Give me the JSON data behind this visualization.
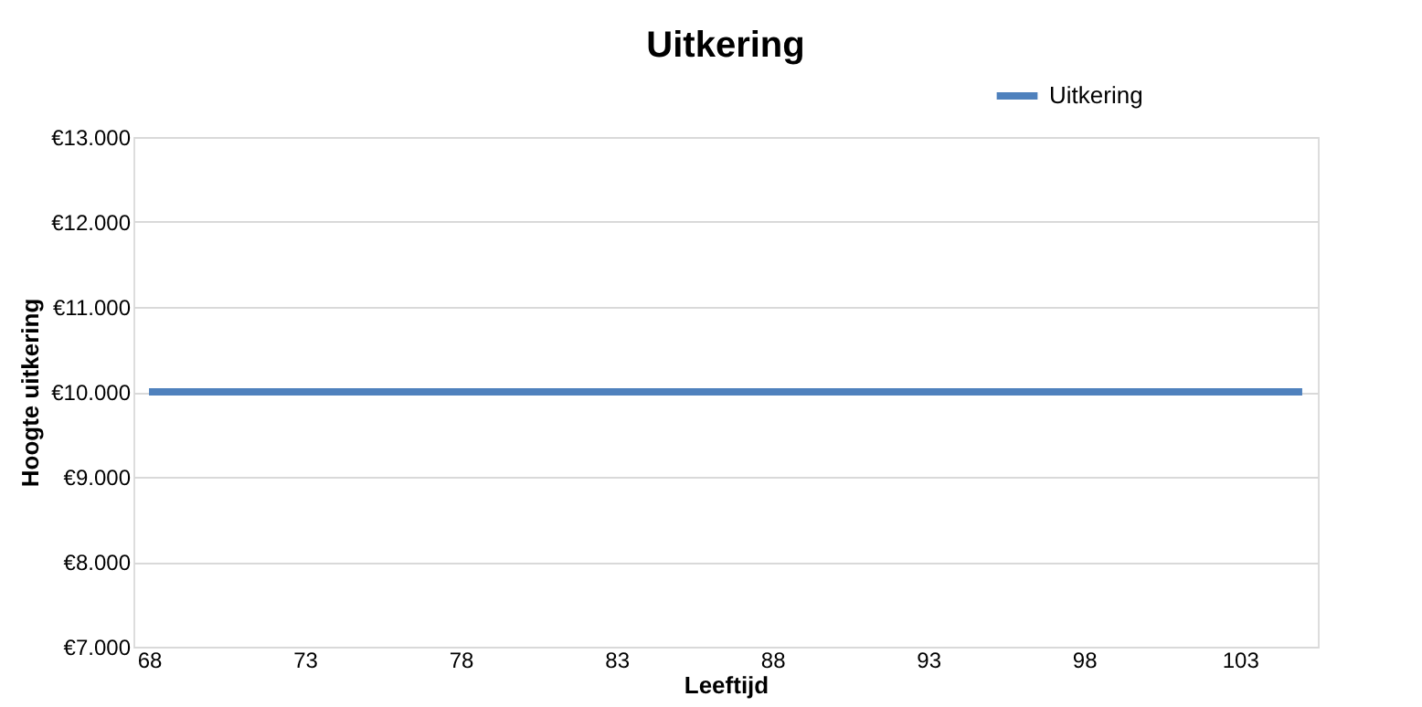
{
  "chart_data": {
    "type": "line",
    "title": "Uitkering",
    "xlabel": "Leeftijd",
    "ylabel": "Hoogte uitkering",
    "x": [
      68,
      105
    ],
    "series": [
      {
        "name": "Uitkering",
        "color": "#4f81bd",
        "values": [
          10000,
          10000
        ]
      }
    ],
    "xlim": [
      67.5,
      105.5
    ],
    "xticks": [
      68,
      73,
      78,
      83,
      88,
      93,
      98,
      103
    ],
    "ylim": [
      7000,
      13000
    ],
    "yticks": [
      {
        "value": 7000,
        "label": "€7.000"
      },
      {
        "value": 8000,
        "label": "€8.000"
      },
      {
        "value": 9000,
        "label": "€9.000"
      },
      {
        "value": 10000,
        "label": "€10.000"
      },
      {
        "value": 11000,
        "label": "€11.000"
      },
      {
        "value": 12000,
        "label": "€12.000"
      },
      {
        "value": 13000,
        "label": "€13.000"
      }
    ],
    "grid": "y",
    "legend": "top right",
    "line_style": "solid",
    "marker": "none"
  }
}
